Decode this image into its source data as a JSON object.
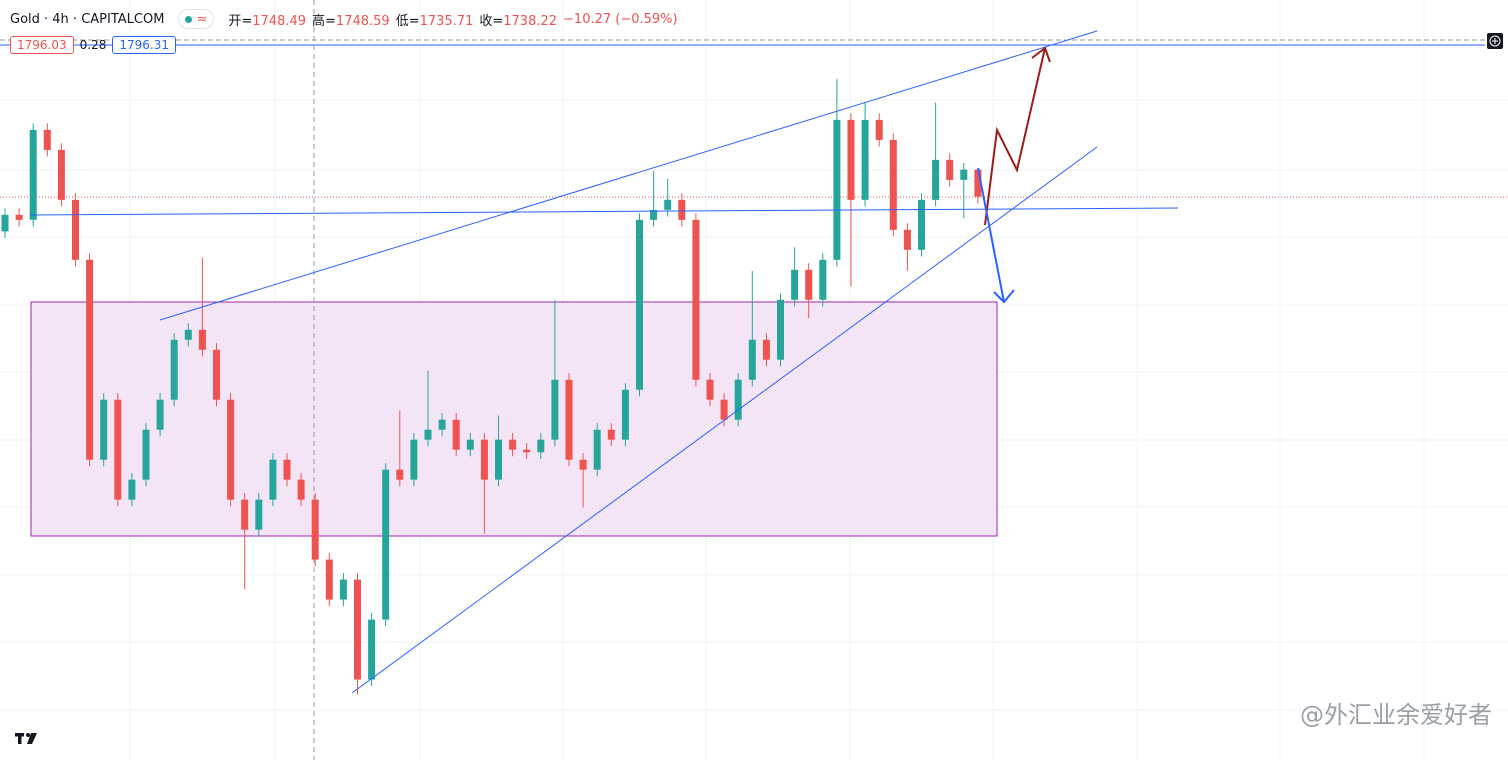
{
  "header": {
    "symbol": "Gold · 4h · CAPITALCOM",
    "ohlc": [
      {
        "label": "开=",
        "value": "1748.49"
      },
      {
        "label": "高=",
        "value": "1748.59"
      },
      {
        "label": "低=",
        "value": "1735.71"
      },
      {
        "label": "收=",
        "value": "1738.22"
      }
    ],
    "change": "−10.27 (−0.59%)",
    "sell": "1796.03",
    "spread": "0.28",
    "buy": "1796.31"
  },
  "watermark": "@外汇业余爱好者",
  "chart_data": {
    "type": "candlestick",
    "ylim": [
      1524,
      1813
    ],
    "up_color": "#26a69a",
    "down_color": "#ef5350",
    "candles": [
      [
        1725.0,
        1733.8,
        1722.5,
        1731.3
      ],
      [
        1731.3,
        1733.8,
        1726.9,
        1729.4
      ],
      [
        1729.4,
        1766.1,
        1726.9,
        1763.6
      ],
      [
        1763.6,
        1766.1,
        1753.5,
        1756.0
      ],
      [
        1756.0,
        1758.5,
        1734.5,
        1737.0
      ],
      [
        1737.0,
        1739.5,
        1711.7,
        1714.2
      ],
      [
        1714.2,
        1716.7,
        1635.7,
        1638.2
      ],
      [
        1638.2,
        1663.5,
        1635.7,
        1661.0
      ],
      [
        1661.0,
        1663.5,
        1620.5,
        1623.0
      ],
      [
        1623.0,
        1633.1,
        1620.5,
        1630.6
      ],
      [
        1630.6,
        1652.1,
        1628.1,
        1649.6
      ],
      [
        1649.6,
        1663.5,
        1647.1,
        1661.0
      ],
      [
        1661.0,
        1686.3,
        1658.5,
        1683.8
      ],
      [
        1683.8,
        1690.1,
        1681.3,
        1687.6
      ],
      [
        1687.6,
        1715.0,
        1677.5,
        1680.0
      ],
      [
        1680.0,
        1682.5,
        1658.5,
        1661.0
      ],
      [
        1661.0,
        1663.5,
        1620.5,
        1623.0
      ],
      [
        1623.0,
        1625.5,
        1589.0,
        1611.6
      ],
      [
        1611.6,
        1625.5,
        1609.1,
        1623.0
      ],
      [
        1623.0,
        1640.7,
        1620.5,
        1638.2
      ],
      [
        1638.2,
        1640.7,
        1628.1,
        1630.6
      ],
      [
        1630.6,
        1633.1,
        1620.5,
        1623.0
      ],
      [
        1623.0,
        1625.5,
        1597.7,
        1600.2
      ],
      [
        1600.2,
        1602.7,
        1582.5,
        1585.0
      ],
      [
        1585.0,
        1595.1,
        1582.5,
        1592.6
      ],
      [
        1592.6,
        1595.1,
        1549.0,
        1554.6
      ],
      [
        1554.6,
        1579.9,
        1552.1,
        1577.4
      ],
      [
        1577.4,
        1636.9,
        1574.9,
        1634.4
      ],
      [
        1634.4,
        1657.0,
        1628.1,
        1630.6
      ],
      [
        1630.6,
        1648.3,
        1628.1,
        1645.8
      ],
      [
        1645.8,
        1672.0,
        1643.3,
        1649.6
      ],
      [
        1649.6,
        1655.9,
        1647.1,
        1653.4
      ],
      [
        1653.4,
        1655.9,
        1639.5,
        1642.0
      ],
      [
        1642.0,
        1648.3,
        1639.5,
        1645.8
      ],
      [
        1645.8,
        1648.3,
        1610.0,
        1630.6
      ],
      [
        1630.6,
        1655.0,
        1628.1,
        1645.8
      ],
      [
        1645.8,
        1648.3,
        1639.5,
        1642.0
      ],
      [
        1642.0,
        1644.5,
        1638.5,
        1641.0
      ],
      [
        1641.0,
        1648.3,
        1638.5,
        1645.8
      ],
      [
        1645.8,
        1699.0,
        1643.3,
        1668.6
      ],
      [
        1668.6,
        1671.1,
        1635.7,
        1638.2
      ],
      [
        1638.2,
        1640.7,
        1620.0,
        1634.4
      ],
      [
        1634.4,
        1652.1,
        1631.9,
        1649.6
      ],
      [
        1649.6,
        1652.1,
        1643.3,
        1645.8
      ],
      [
        1645.8,
        1667.3,
        1643.3,
        1664.8
      ],
      [
        1664.8,
        1731.9,
        1662.3,
        1729.4
      ],
      [
        1729.4,
        1748.0,
        1726.9,
        1733.2
      ],
      [
        1733.2,
        1745.0,
        1730.7,
        1737.0
      ],
      [
        1737.0,
        1739.5,
        1726.9,
        1729.4
      ],
      [
        1729.4,
        1731.9,
        1666.1,
        1668.6
      ],
      [
        1668.6,
        1671.1,
        1658.5,
        1661.0
      ],
      [
        1661.0,
        1663.5,
        1650.9,
        1653.4
      ],
      [
        1653.4,
        1671.1,
        1650.9,
        1668.6
      ],
      [
        1668.6,
        1710.0,
        1666.1,
        1683.8
      ],
      [
        1683.8,
        1686.3,
        1673.7,
        1676.2
      ],
      [
        1676.2,
        1701.5,
        1673.7,
        1699.0
      ],
      [
        1699.0,
        1719.0,
        1696.5,
        1710.4
      ],
      [
        1710.4,
        1712.9,
        1692.0,
        1699.0
      ],
      [
        1699.0,
        1716.7,
        1696.5,
        1714.2
      ],
      [
        1714.2,
        1783.0,
        1711.7,
        1767.4
      ],
      [
        1767.4,
        1769.9,
        1704.0,
        1737.0
      ],
      [
        1737.0,
        1774.0,
        1734.5,
        1767.4
      ],
      [
        1767.4,
        1769.9,
        1757.3,
        1759.8
      ],
      [
        1759.8,
        1762.3,
        1723.1,
        1725.6
      ],
      [
        1725.6,
        1728.1,
        1710.0,
        1718.0
      ],
      [
        1718.0,
        1739.5,
        1715.5,
        1737.0
      ],
      [
        1737.0,
        1774.0,
        1734.5,
        1752.2
      ],
      [
        1752.2,
        1754.7,
        1742.1,
        1744.6
      ],
      [
        1744.6,
        1751.0,
        1730.0,
        1748.5
      ],
      [
        1748.49,
        1748.59,
        1735.71,
        1738.22
      ]
    ]
  }
}
